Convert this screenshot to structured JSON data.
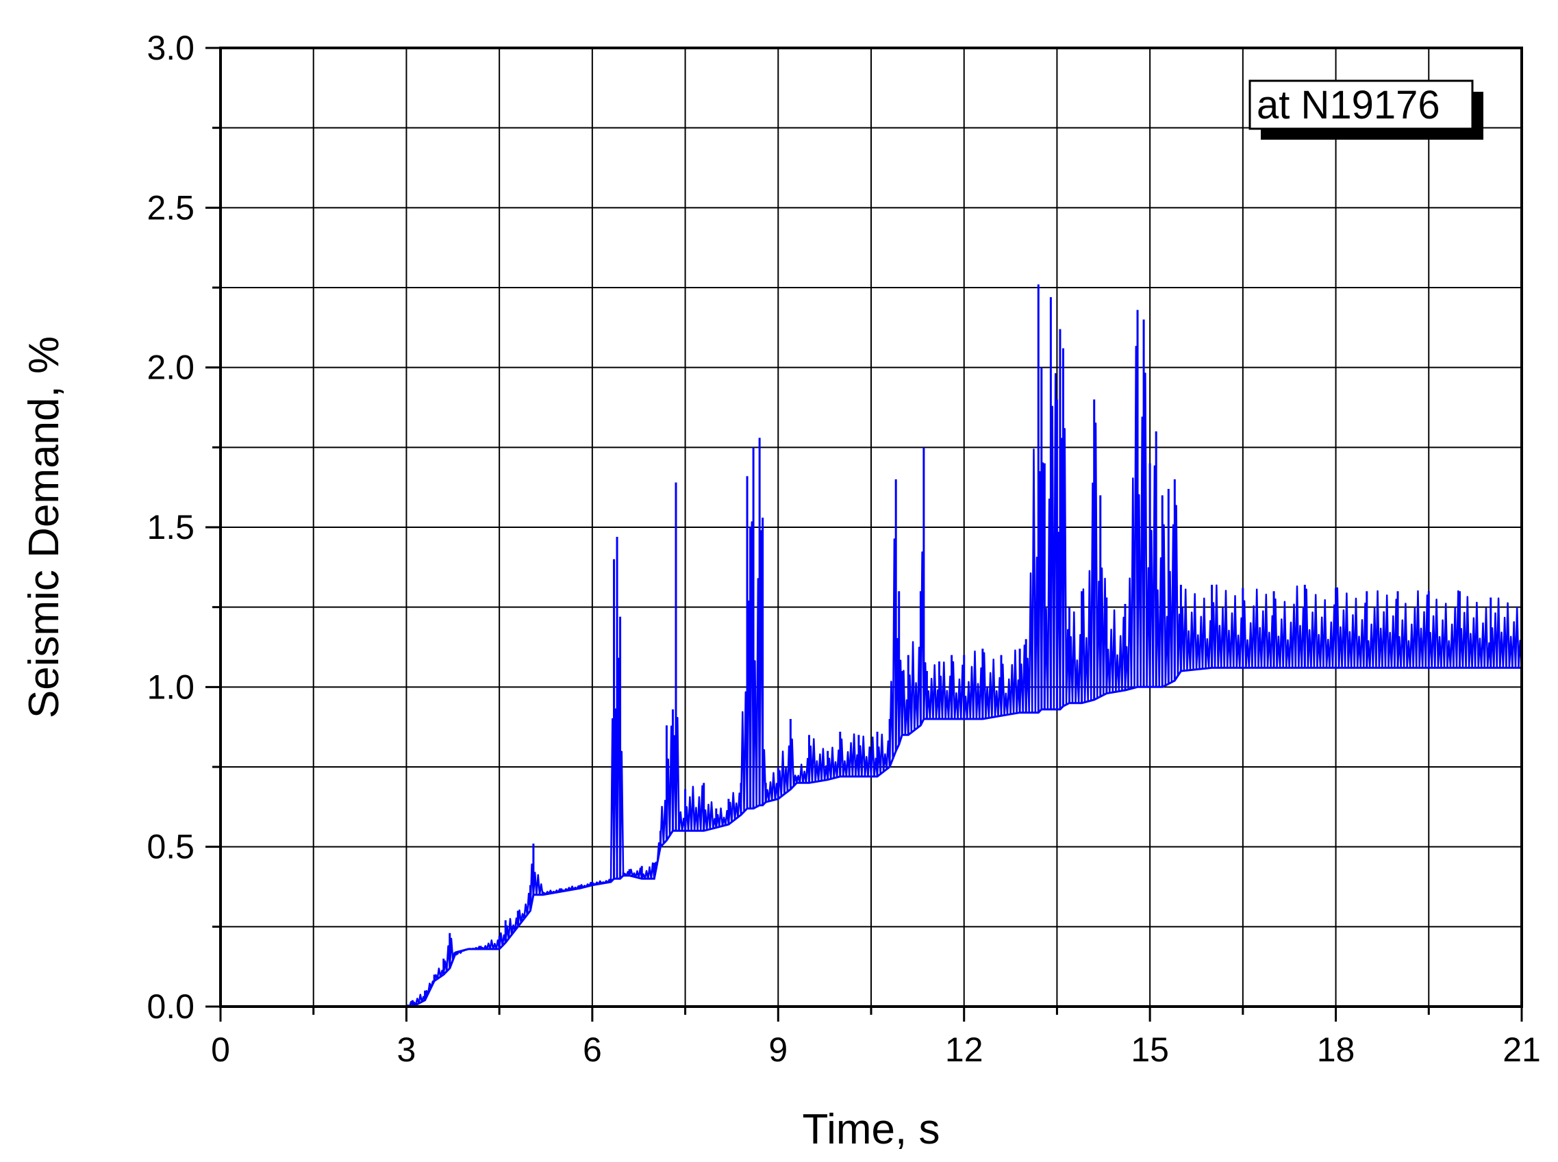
{
  "chart_data": {
    "type": "line",
    "title": "",
    "xlabel": "Time, s",
    "ylabel": "Seismic Demand, %",
    "xlim": [
      0,
      21
    ],
    "ylim": [
      0,
      3.0
    ],
    "x_ticks": [
      "0",
      "3",
      "6",
      "9",
      "12",
      "15",
      "18",
      "21"
    ],
    "y_ticks": [
      "0.0",
      "0.5",
      "1.0",
      "1.5",
      "2.0",
      "2.5",
      "3.0"
    ],
    "grid": true,
    "annotation": "at N19176",
    "annotation_position": "top-right",
    "line_color": "#0000ff",
    "series": [
      {
        "name": "",
        "x": [
          0,
          3.0,
          3.1,
          3.3,
          3.45,
          3.6,
          3.7,
          3.8,
          4.0,
          4.2,
          4.5,
          4.6,
          4.8,
          5.0,
          5.05,
          5.2,
          5.5,
          5.8,
          6.0,
          6.3,
          6.35,
          6.4,
          6.45,
          6.5,
          6.6,
          6.8,
          7.0,
          7.1,
          7.2,
          7.3,
          7.35,
          7.4,
          7.5,
          7.8,
          8.0,
          8.2,
          8.4,
          8.5,
          8.55,
          8.6,
          8.7,
          8.75,
          8.8,
          9.0,
          9.2,
          9.3,
          9.5,
          9.8,
          10.0,
          10.3,
          10.6,
          10.8,
          10.9,
          10.95,
          11.0,
          11.1,
          11.3,
          11.35,
          11.4,
          11.6,
          11.8,
          12.0,
          12.3,
          12.6,
          12.9,
          13.0,
          13.2,
          13.25,
          13.3,
          13.4,
          13.5,
          13.55,
          13.6,
          13.7,
          13.9,
          14.1,
          14.2,
          14.3,
          14.6,
          14.8,
          14.9,
          15.0,
          15.1,
          15.2,
          15.3,
          15.4,
          15.5,
          16.0,
          16.5,
          17.0,
          17.5,
          18.0,
          18.5,
          19.0,
          19.5,
          20.0,
          20.5,
          21.0
        ],
        "values": [
          0.0,
          0.0,
          0.02,
          0.05,
          0.1,
          0.15,
          0.23,
          0.16,
          0.18,
          0.19,
          0.22,
          0.27,
          0.3,
          0.38,
          0.51,
          0.36,
          0.37,
          0.38,
          0.39,
          0.4,
          1.4,
          1.47,
          1.22,
          0.42,
          0.43,
          0.44,
          0.45,
          0.55,
          0.88,
          0.93,
          1.64,
          0.6,
          0.68,
          0.7,
          0.62,
          0.65,
          0.7,
          1.66,
          1.5,
          1.75,
          1.78,
          1.53,
          0.7,
          0.75,
          0.9,
          0.72,
          0.85,
          0.8,
          0.86,
          0.85,
          0.86,
          0.9,
          1.65,
          1.3,
          1.05,
          1.1,
          1.3,
          1.75,
          1.05,
          1.08,
          1.1,
          1.1,
          1.12,
          1.1,
          1.12,
          1.15,
          2.26,
          2.0,
          1.7,
          2.22,
          1.9,
          2.12,
          2.06,
          1.25,
          1.3,
          1.9,
          1.6,
          1.28,
          1.26,
          2.18,
          2.15,
          1.7,
          1.8,
          1.6,
          1.62,
          1.65,
          1.32,
          1.32,
          1.31,
          1.3,
          1.32,
          1.31,
          1.3,
          1.3,
          1.3,
          1.3,
          1.28,
          1.27
        ],
        "lower": [
          0.0,
          0.0,
          0.0,
          0.02,
          0.08,
          0.1,
          0.12,
          0.17,
          0.18,
          0.18,
          0.18,
          0.2,
          0.25,
          0.3,
          0.35,
          0.35,
          0.36,
          0.37,
          0.38,
          0.39,
          0.4,
          0.4,
          0.4,
          0.41,
          0.41,
          0.4,
          0.4,
          0.5,
          0.52,
          0.55,
          0.55,
          0.55,
          0.55,
          0.55,
          0.56,
          0.57,
          0.6,
          0.62,
          0.62,
          0.62,
          0.63,
          0.63,
          0.64,
          0.65,
          0.68,
          0.7,
          0.7,
          0.71,
          0.72,
          0.72,
          0.72,
          0.75,
          0.8,
          0.82,
          0.85,
          0.85,
          0.88,
          0.9,
          0.9,
          0.9,
          0.9,
          0.9,
          0.9,
          0.91,
          0.92,
          0.92,
          0.92,
          0.93,
          0.93,
          0.93,
          0.93,
          0.93,
          0.94,
          0.95,
          0.95,
          0.96,
          0.97,
          0.98,
          0.99,
          1.0,
          1.0,
          1.0,
          1.0,
          1.0,
          1.01,
          1.02,
          1.05,
          1.06,
          1.06,
          1.06,
          1.06,
          1.06,
          1.06,
          1.06,
          1.06,
          1.06,
          1.06,
          1.06
        ]
      }
    ]
  }
}
